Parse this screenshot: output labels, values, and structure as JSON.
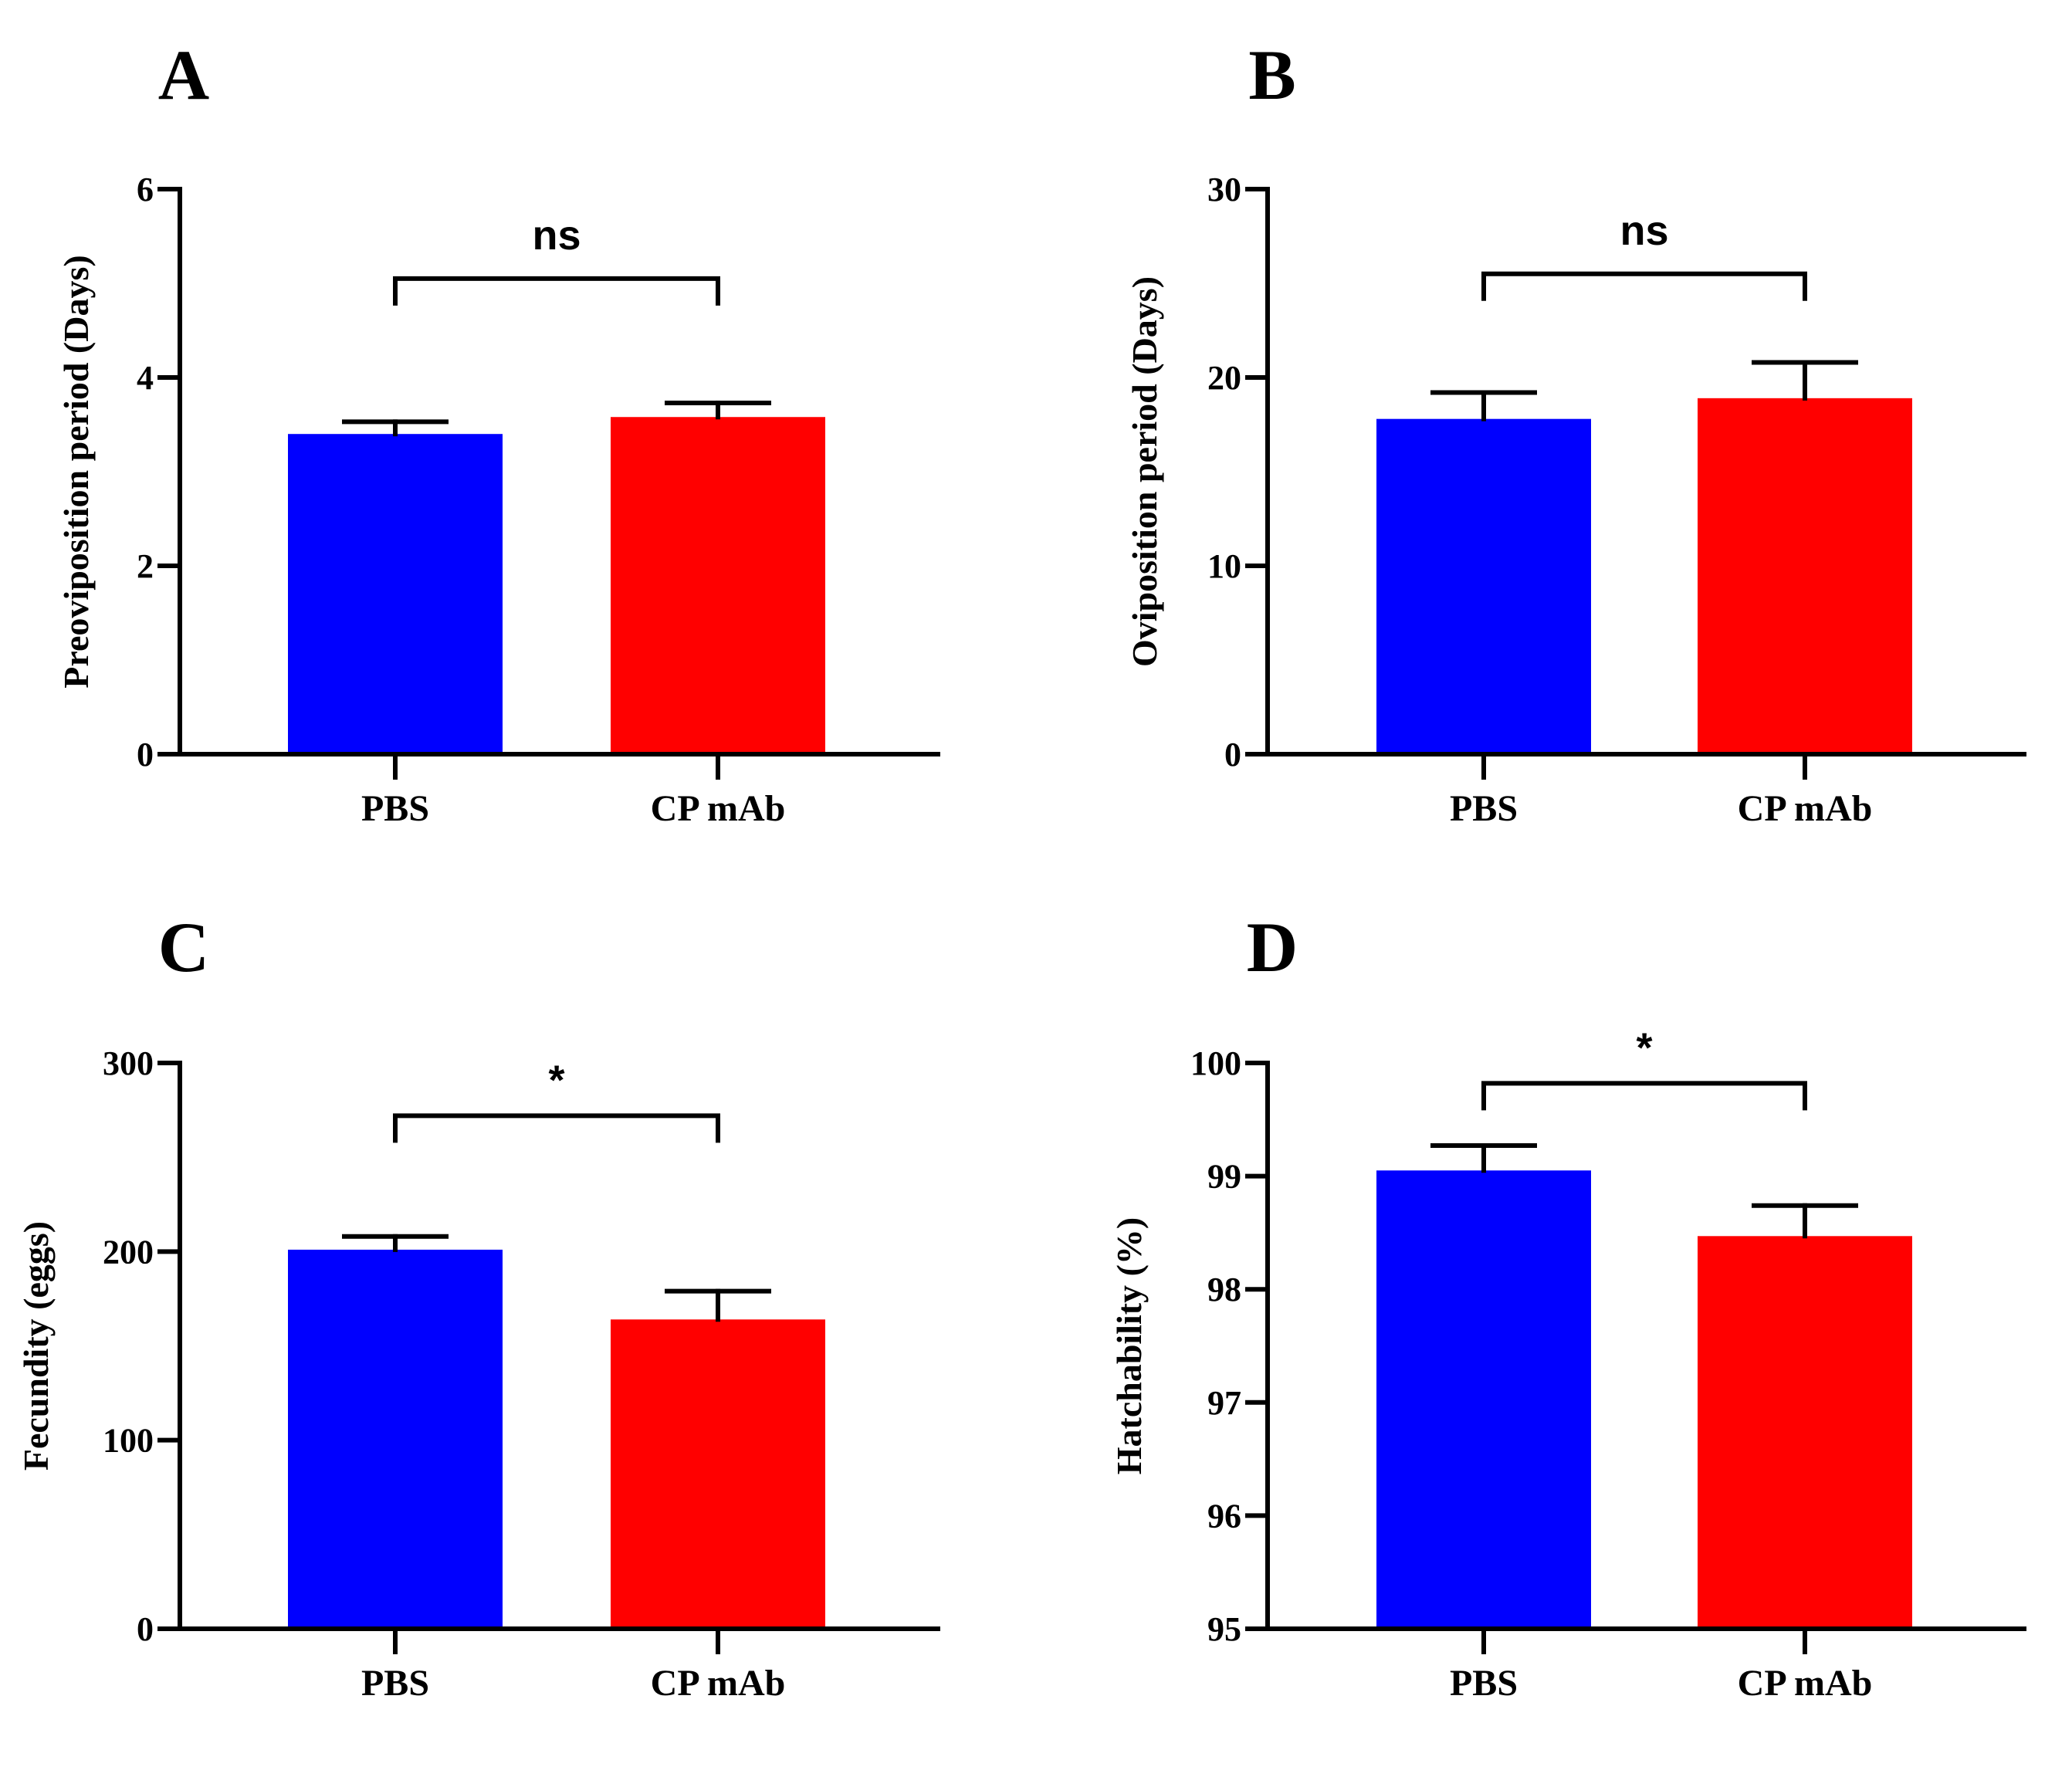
{
  "chart_data": [
    {
      "type": "bar",
      "panel": "A",
      "categories": [
        "PBS",
        "CP mAb"
      ],
      "values": [
        3.4,
        3.58
      ],
      "errors": [
        0.13,
        0.15
      ],
      "ylabel": "Preoviposition period (Days)",
      "ylim": [
        0,
        6
      ],
      "yticks": [
        "0",
        "2",
        "4",
        "6"
      ],
      "colors": [
        "#0000ff",
        "#ff0000"
      ],
      "significance": "ns",
      "bracket_y": 5.05
    },
    {
      "type": "bar",
      "panel": "B",
      "categories": [
        "PBS",
        "CP mAb"
      ],
      "values": [
        17.8,
        18.9
      ],
      "errors": [
        1.4,
        1.9
      ],
      "ylabel": "Oviposition period (Days)",
      "ylim": [
        0,
        30
      ],
      "yticks": [
        "0",
        "10",
        "20",
        "30"
      ],
      "colors": [
        "#0000ff",
        "#ff0000"
      ],
      "significance": "ns",
      "bracket_y": 25.5
    },
    {
      "type": "bar",
      "panel": "C",
      "categories": [
        "PBS",
        "CP mAb"
      ],
      "values": [
        201,
        164
      ],
      "errors": [
        7,
        15
      ],
      "ylabel": "Fecundity (eggs)",
      "ylim": [
        0,
        300
      ],
      "yticks": [
        "0",
        "100",
        "200",
        "300"
      ],
      "colors": [
        "#0000ff",
        "#ff0000"
      ],
      "significance": "*",
      "bracket_y": 272
    },
    {
      "type": "bar",
      "panel": "D",
      "categories": [
        "PBS",
        "CP mAb"
      ],
      "values": [
        99.05,
        98.47
      ],
      "errors": [
        0.22,
        0.27
      ],
      "ylabel": "Hatchability (%)",
      "ylim": [
        95,
        100
      ],
      "yticks": [
        "95",
        "96",
        "97",
        "98",
        "99",
        "100"
      ],
      "colors": [
        "#0000ff",
        "#ff0000"
      ],
      "significance": "*",
      "bracket_y": 99.82
    }
  ]
}
